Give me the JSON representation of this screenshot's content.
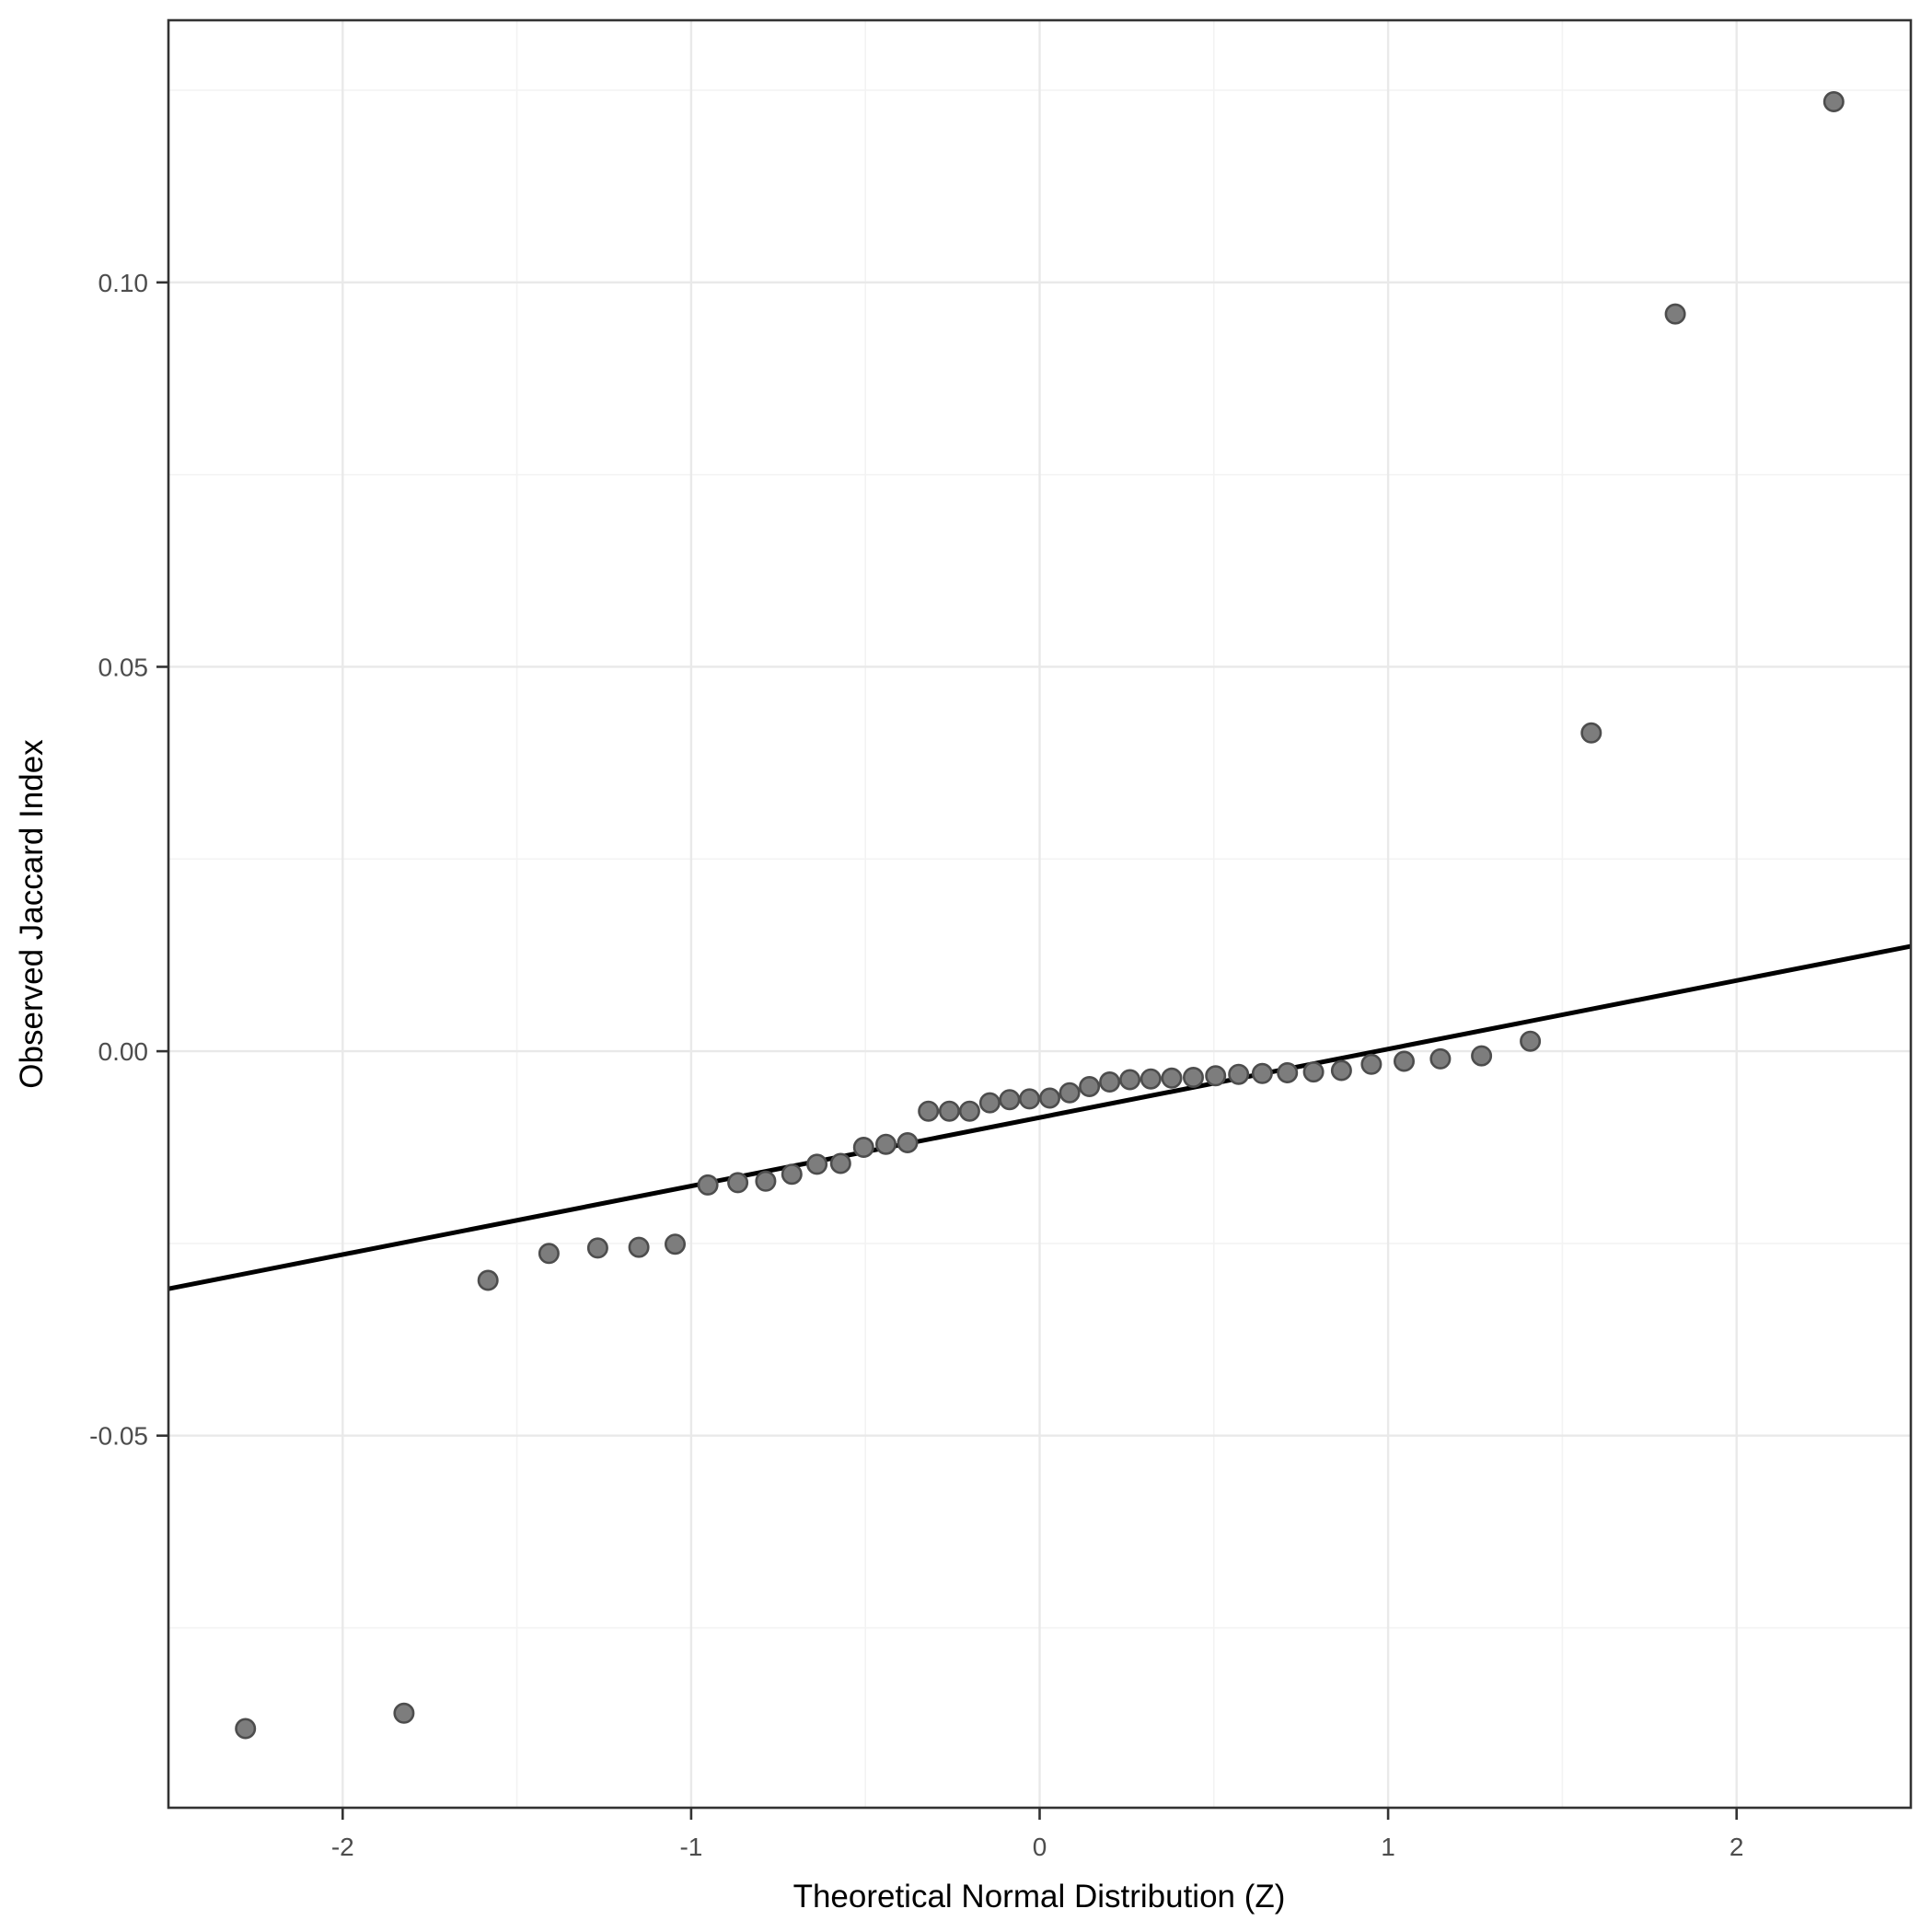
{
  "chart_data": {
    "type": "scatter",
    "title": "",
    "xlabel": "Theoretical Normal Distribution (Z)",
    "ylabel": "Observed Jaccard Index",
    "xlim": [
      -2.5,
      2.5
    ],
    "ylim": [
      -0.0984,
      0.1341
    ],
    "grid": true,
    "legend_position": "none",
    "x_ticks": [
      -2,
      -1,
      0,
      1,
      2
    ],
    "x_tick_labels": [
      "-2",
      "-1",
      "0",
      "1",
      "2"
    ],
    "y_ticks": [
      0.1,
      0.05,
      0.0,
      -0.05
    ],
    "y_tick_labels": [
      "0.10",
      "0.05",
      "0.00",
      "-0.05"
    ],
    "x_minor_ticks": [
      -1.5,
      -0.5,
      0.5,
      1.5
    ],
    "y_minor_ticks": [
      0.125,
      0.075,
      0.025,
      -0.025,
      -0.075
    ],
    "points": {
      "x": [
        -2.279,
        -1.824,
        -1.583,
        -1.408,
        -1.268,
        -1.15,
        -1.046,
        -0.952,
        -0.866,
        -0.786,
        -0.711,
        -0.639,
        -0.571,
        -0.505,
        -0.441,
        -0.379,
        -0.319,
        -0.259,
        -0.201,
        -0.143,
        -0.086,
        -0.029,
        0.029,
        0.086,
        0.143,
        0.201,
        0.259,
        0.319,
        0.379,
        0.441,
        0.505,
        0.571,
        0.639,
        0.711,
        0.786,
        0.866,
        0.952,
        1.046,
        1.15,
        1.268,
        1.408,
        1.583,
        1.824,
        2.279
      ],
      "y": [
        -0.0881,
        -0.0861,
        -0.0298,
        -0.0263,
        -0.0256,
        -0.0255,
        -0.0251,
        -0.0174,
        -0.0171,
        -0.0169,
        -0.016,
        -0.0147,
        -0.0146,
        -0.0125,
        -0.0121,
        -0.0119,
        -0.0078,
        -0.0078,
        -0.0078,
        -0.0067,
        -0.0063,
        -0.0062,
        -0.0061,
        -0.0054,
        -0.0046,
        -0.004,
        -0.0037,
        -0.0036,
        -0.0035,
        -0.0034,
        -0.0032,
        -0.003,
        -0.0029,
        -0.0028,
        -0.0027,
        -0.0025,
        -0.0017,
        -0.0013,
        -0.001,
        -0.0006,
        0.0013,
        0.0414,
        0.0959,
        0.1235
      ]
    },
    "reference_line": {
      "x1": -2.5,
      "y1": -0.0309,
      "x2": 2.5,
      "y2": 0.01365
    },
    "styles": {
      "background": "#ffffff",
      "panel_background": "#ffffff",
      "panel_border": "#333333",
      "grid_major": "#e9e9e9",
      "grid_minor": "#f3f3f3",
      "tick_color": "#333333",
      "tick_label_color": "#4d4d4d",
      "axis_title_color": "#000000",
      "point_fill": "#7d7d7d",
      "point_stroke": "#4d4d4d",
      "line_color": "#000000"
    }
  }
}
